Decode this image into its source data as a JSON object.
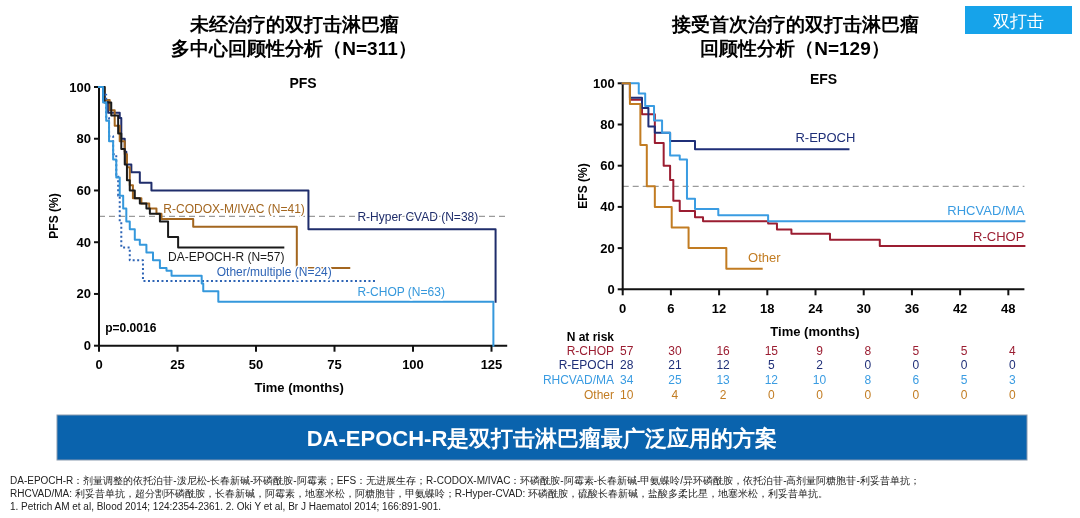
{
  "chart_data": [
    {
      "type": "step",
      "title": "未经治疗的双打击淋巴瘤",
      "subtitle": "多中心回顾性分析（N=311）",
      "xlabel": "Time (months)",
      "ylabel": "PFS (%)",
      "xlim": [
        0,
        130
      ],
      "xticks": [
        0,
        25,
        50,
        75,
        100,
        125
      ],
      "ylim": [
        0,
        100
      ],
      "yticks": [
        0,
        20,
        40,
        60,
        80,
        100
      ],
      "ref_lines": [
        {
          "axis": "y",
          "value": 50,
          "color": "#9a9a9a",
          "line_style": "dashed"
        }
      ],
      "annotations": [
        "PFS",
        "p=0.0016"
      ],
      "series": [
        {
          "name": "R-Hyper CVAD (N=38)",
          "color": "#1f2d6b",
          "x": [
            0,
            1.3,
            2.9,
            6.6,
            7.1,
            8.2,
            8.7,
            10.3,
            13,
            16.7,
            66.7,
            126.3
          ],
          "values": [
            100,
            95,
            90,
            88,
            80,
            75,
            70,
            67,
            63,
            60,
            45,
            17
          ]
        },
        {
          "name": "R-CODOX-M/IVAC (N=41)",
          "color": "#a3661f",
          "x": [
            0,
            1.8,
            3.4,
            5,
            6.6,
            8.2,
            8.9,
            9.8,
            10.8,
            13.5,
            16,
            18.3,
            19.9,
            30,
            63,
            79.7
          ],
          "values": [
            100,
            95,
            91,
            85,
            79,
            74,
            69,
            62,
            57,
            55,
            53,
            51,
            49,
            46,
            30,
            30
          ]
        },
        {
          "name": "DA-EPOCH-R (N=57)",
          "color": "#1a1a1a",
          "x": [
            0,
            1.8,
            3.9,
            6.1,
            7.1,
            8.2,
            8.9,
            9.8,
            11.4,
            13,
            15.1,
            16.2,
            19.4,
            22,
            25.2,
            58.7
          ],
          "values": [
            100,
            94,
            89,
            82,
            76,
            70,
            64,
            60,
            57,
            55,
            53,
            51,
            48,
            42,
            38,
            38
          ]
        },
        {
          "name": "Other/multiple (N=24)",
          "color": "#2e64b5",
          "line_style": "dotted",
          "x": [
            0,
            1.3,
            2.3,
            3.2,
            4.5,
            5.5,
            6.1,
            6.6,
            7.1,
            9.8,
            14,
            87.9
          ],
          "values": [
            100,
            97,
            88,
            81,
            74,
            66,
            58,
            48,
            38,
            33,
            25,
            25
          ]
        },
        {
          "name": "R-CHOP (N=63)",
          "color": "#3598dc",
          "x": [
            0,
            1.3,
            2.3,
            3.2,
            4.5,
            5.5,
            6.6,
            7.7,
            8.7,
            9.8,
            11.4,
            13,
            15.1,
            17.2,
            19.4,
            21.5,
            23.1,
            32.7,
            33.2,
            38,
            125.6
          ],
          "values": [
            100,
            94,
            87,
            79,
            72,
            65,
            58,
            53,
            48,
            45,
            41,
            39,
            36,
            33,
            30,
            29,
            27,
            24,
            21,
            17,
            0
          ]
        }
      ]
    },
    {
      "type": "step",
      "title": "接受首次治疗的双打击淋巴瘤",
      "subtitle": "回顾性分析（N=129）",
      "xlabel": "Time (months)",
      "ylabel": "EFS (%)",
      "xlim": [
        0,
        50
      ],
      "xticks": [
        0,
        6,
        12,
        18,
        24,
        30,
        36,
        42,
        48
      ],
      "ylim": [
        0,
        100
      ],
      "yticks": [
        0,
        20,
        40,
        60,
        80,
        100
      ],
      "ref_lines": [
        {
          "axis": "y",
          "value": 50,
          "color": "#9a9a9a",
          "line_style": "dashed"
        }
      ],
      "annotations": [
        "EFS",
        "N at risk",
        "57",
        "30",
        "16",
        "15",
        "9",
        "8",
        "5",
        "5",
        "4",
        "28",
        "21",
        "12",
        "5",
        "2",
        "0",
        "0",
        "0",
        "0",
        "34",
        "25",
        "13",
        "12",
        "10",
        "8",
        "6",
        "5",
        "3",
        "10",
        "4",
        "2",
        "0",
        "0",
        "0",
        "0",
        "0",
        "0"
      ],
      "series": [
        {
          "name": "R-CHOP",
          "color": "#9b1d31",
          "x": [
            0,
            0.9,
            2.4,
            4,
            5.1,
            5.9,
            6.3,
            7.1,
            9,
            10,
            18.1,
            19.2,
            21,
            25.8,
            32,
            50
          ],
          "values": [
            100,
            92,
            85,
            71,
            60,
            53,
            43,
            38,
            35,
            33,
            32,
            29,
            27,
            24,
            21,
            21
          ]
        },
        {
          "name": "R-EPOCH",
          "color": "#1f2f78",
          "x": [
            0,
            0.9,
            2.4,
            3.2,
            4,
            5.9,
            9,
            28.1
          ],
          "values": [
            100,
            93,
            88,
            79,
            76,
            72,
            68,
            68
          ]
        },
        {
          "name": "RHCVAD/MA",
          "color": "#3a9ce2",
          "x": [
            0,
            2,
            2.8,
            3.9,
            4.9,
            5.9,
            7.1,
            8,
            9,
            11.9,
            18.1,
            50
          ],
          "values": [
            100,
            95,
            89,
            82,
            76,
            65,
            63,
            44,
            39,
            36,
            33,
            33
          ]
        },
        {
          "name": "Other",
          "color": "#c27c22",
          "x": [
            0,
            0.9,
            2.2,
            3,
            4,
            6.1,
            8.2,
            12.9,
            17.3
          ],
          "values": [
            100,
            90,
            70,
            50,
            40,
            30,
            20,
            10,
            10
          ]
        }
      ]
    },
    {
      "type": "other",
      "title": "DA-EPOCH-R是双打击淋巴瘤最广泛应用的方案",
      "annotations": [
        "双打击",
        "DA-EPOCH-R：剂量调整的依托泊苷-泼尼松-长春新碱-环磷酰胺-阿霉素；EFS：无进展生存；R-CODOX-M/IVAC：环磷酰胺-阿霉素-长春新碱-甲氨蝶呤/异环磷酰胺，依托泊苷-高剂量阿糖胞苷-利妥昔单抗；",
        "RHCVAD/MA: 利妥昔单抗，超分割环磷酰胺，长春新碱，阿霉素，地塞米松，阿糖胞苷，甲氨蝶呤；R-Hyper-CVAD: 环磷酰胺，硫酸长春新碱，盐酸多柔比星，地塞米松，利妥昔单抗。",
        "1. Petrich AM et al, Blood 2014; 124:2354-2361. 2. Oki Y et al, Br J Haematol 2014; 166:891-901."
      ]
    }
  ]
}
